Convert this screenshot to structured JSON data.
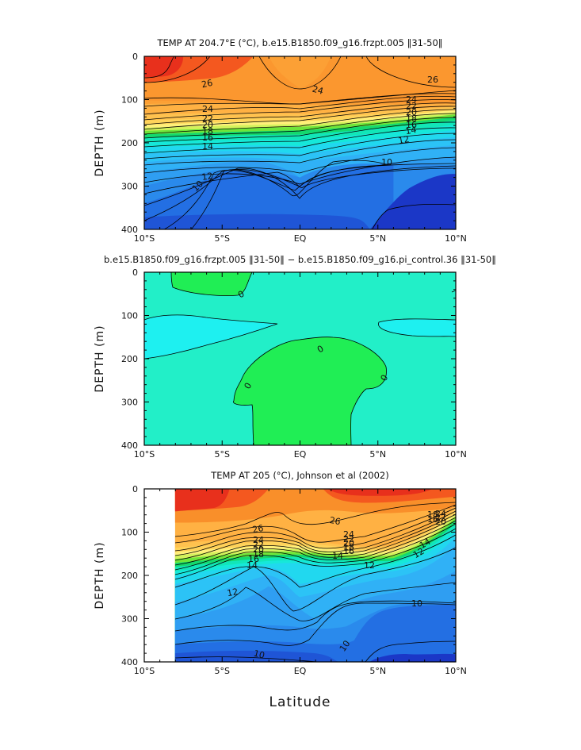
{
  "chart_data": [
    {
      "type": "contour",
      "title": "TEMP AT 204.7°E (°C), b.e15.B1850.f09_g16.frzpt.005 ‖31-50‖",
      "ylabel": "DEPTH (m)",
      "xlabel": "",
      "x_ticks": [
        "10°S",
        "5°S",
        "EQ",
        "5°N",
        "10°N"
      ],
      "y_ticks": [
        "0",
        "100",
        "200",
        "300",
        "400"
      ],
      "xlim": [
        -10,
        10
      ],
      "ylim": [
        0,
        400
      ],
      "y_inverted": true,
      "contour_labels": [
        "26",
        "24",
        "26",
        "24",
        "22",
        "20",
        "18",
        "16",
        "14",
        "12",
        "10",
        "24",
        "22",
        "20",
        "18",
        "16",
        "14",
        "12",
        "10"
      ]
    },
    {
      "type": "contour",
      "title": "b.e15.B1850.f09_g16.frzpt.005 ‖31-50‖ − b.e15.B1850.f09_g16.pi_control.36 ‖31-50‖",
      "ylabel": "DEPTH (m)",
      "xlabel": "",
      "x_ticks": [
        "10°S",
        "5°S",
        "EQ",
        "5°N",
        "10°N"
      ],
      "y_ticks": [
        "0",
        "100",
        "200",
        "300",
        "400"
      ],
      "xlim": [
        -10,
        10
      ],
      "ylim": [
        0,
        400
      ],
      "y_inverted": true,
      "contour_labels": [
        "0",
        "0",
        "0",
        "0"
      ]
    },
    {
      "type": "contour",
      "title": "TEMP AT 205 (°C), Johnson et al (2002)",
      "ylabel": "DEPTH (m)",
      "xlabel": "Latitude",
      "x_ticks": [
        "10°S",
        "5°S",
        "EQ",
        "5°N",
        "10°N"
      ],
      "y_ticks": [
        "0",
        "100",
        "200",
        "300",
        "400"
      ],
      "xlim": [
        -10,
        10
      ],
      "ylim": [
        0,
        400
      ],
      "y_inverted": true,
      "data_xlim": [
        -8,
        10
      ],
      "contour_labels": [
        "26",
        "26",
        "24",
        "22",
        "20",
        "18",
        "16",
        "14",
        "12",
        "10",
        "10",
        "24",
        "22",
        "20",
        "18",
        "16",
        "14",
        "12",
        "10",
        "24",
        "22",
        "20",
        "18",
        "16",
        "14",
        "12",
        "10"
      ]
    }
  ],
  "colors": {
    "t28": "#e8301c",
    "t27": "#f4581f",
    "t26": "#f98f2a",
    "t25": "#fca035",
    "t24": "#ffb143",
    "t23": "#ffc24f",
    "t22": "#ffd35a",
    "t21": "#fff07a",
    "t20": "#d2f25c",
    "t19": "#6fe53a",
    "t18": "#14d96e",
    "t17": "#12e6b8",
    "t16": "#16e8d9",
    "t15": "#21d8ef",
    "t14": "#2cc3f6",
    "t13": "#30b1f6",
    "t12": "#2f9ef2",
    "t11": "#2a8aec",
    "t10": "#236fe3",
    "t9": "#1f55d6",
    "t8": "#1b37c7",
    "d_pos": "#20ee55",
    "d_zero": "#22efc8",
    "d_neg": "#1ef0f0"
  }
}
